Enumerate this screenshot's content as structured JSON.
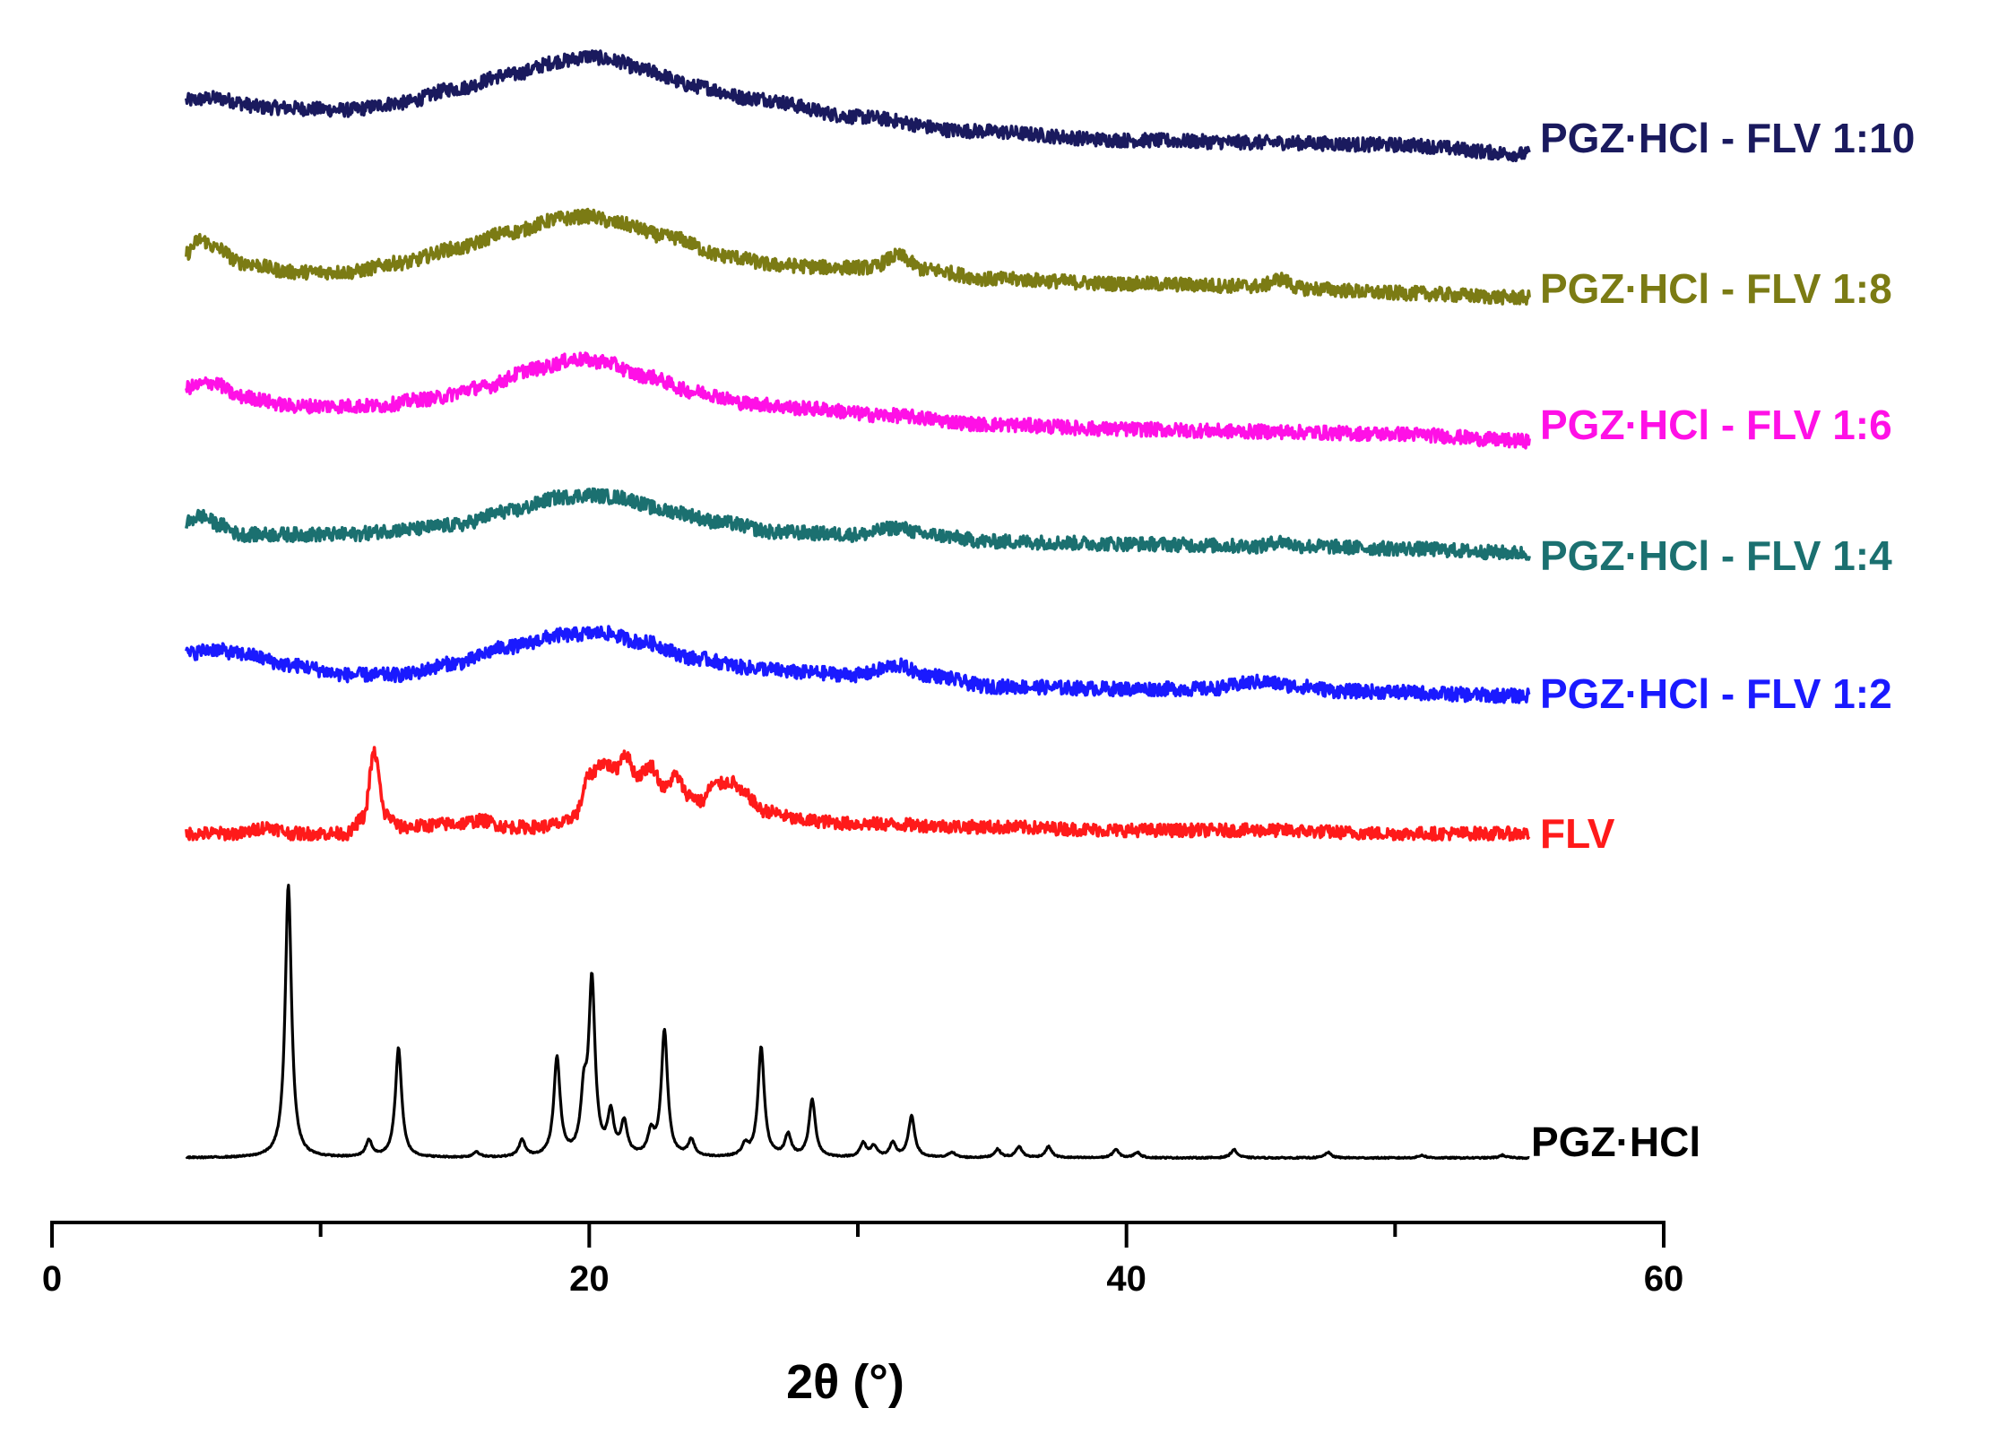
{
  "chart_data": {
    "type": "line",
    "title": "",
    "xlabel": "2θ (°)",
    "ylabel": "",
    "xlim": [
      0,
      60
    ],
    "x_ticks": [
      0,
      20,
      40,
      60
    ],
    "x_minor_ticks": [
      10,
      30,
      50
    ],
    "x_range": [
      5,
      55
    ],
    "grid": false,
    "legend": "inline labels at right end of each trace",
    "series": [
      {
        "name": "PGZ·HCl - FLV 1:10",
        "color": "#1a1a5e",
        "profile": "amorphous",
        "points": [
          [
            5,
            3
          ],
          [
            6,
            4
          ],
          [
            8,
            0
          ],
          [
            11,
            -1
          ],
          [
            13,
            2
          ],
          [
            15,
            8
          ],
          [
            17,
            14
          ],
          [
            19,
            20
          ],
          [
            20,
            22
          ],
          [
            21,
            20
          ],
          [
            22,
            16
          ],
          [
            24,
            9
          ],
          [
            26,
            4
          ],
          [
            30,
            -4
          ],
          [
            34,
            -10
          ],
          [
            40,
            -14
          ],
          [
            45,
            -15
          ],
          [
            50,
            -16
          ],
          [
            55,
            -20
          ]
        ],
        "noise": 3
      },
      {
        "name": "PGZ·HCl - FLV 1:8",
        "color": "#7b7b14",
        "profile": "amorphous",
        "points": [
          [
            5,
            2
          ],
          [
            5.5,
            8
          ],
          [
            6.2,
            4
          ],
          [
            7,
            -2
          ],
          [
            9,
            -6
          ],
          [
            11,
            -6
          ],
          [
            13,
            -2
          ],
          [
            15,
            4
          ],
          [
            17,
            11
          ],
          [
            19,
            17
          ],
          [
            20,
            18
          ],
          [
            21,
            15
          ],
          [
            23,
            9
          ],
          [
            25,
            1
          ],
          [
            27,
            -3
          ],
          [
            29,
            -4
          ],
          [
            30.5,
            -4
          ],
          [
            31.5,
            1
          ],
          [
            32.5,
            -5
          ],
          [
            35,
            -9
          ],
          [
            40,
            -11
          ],
          [
            45,
            -12
          ],
          [
            45.7,
            -9
          ],
          [
            46.5,
            -13
          ],
          [
            50,
            -15
          ],
          [
            55,
            -17
          ]
        ],
        "noise": 3
      },
      {
        "name": "PGZ·HCl - FLV 1:6",
        "color": "#ff10e6",
        "profile": "amorphous",
        "points": [
          [
            5,
            3
          ],
          [
            6,
            5
          ],
          [
            7,
            -1
          ],
          [
            9,
            -5
          ],
          [
            12,
            -5
          ],
          [
            14,
            -2
          ],
          [
            16,
            3
          ],
          [
            18,
            11
          ],
          [
            19.5,
            15
          ],
          [
            20.5,
            14
          ],
          [
            22,
            8
          ],
          [
            24,
            1
          ],
          [
            26,
            -4
          ],
          [
            28,
            -6
          ],
          [
            31,
            -9
          ],
          [
            35,
            -13
          ],
          [
            40,
            -15
          ],
          [
            45,
            -16
          ],
          [
            50,
            -17
          ],
          [
            55,
            -20
          ]
        ],
        "noise": 3
      },
      {
        "name": "PGZ·HCl - FLV 1:4",
        "color": "#1b7070",
        "profile": "amorphous",
        "points": [
          [
            5,
            1
          ],
          [
            5.5,
            4
          ],
          [
            6.3,
            0
          ],
          [
            7,
            -4
          ],
          [
            9,
            -4
          ],
          [
            11,
            -4
          ],
          [
            13,
            -2
          ],
          [
            15,
            0
          ],
          [
            17,
            6
          ],
          [
            19,
            12
          ],
          [
            20,
            13
          ],
          [
            21,
            12
          ],
          [
            23,
            6
          ],
          [
            25,
            1
          ],
          [
            27,
            -3
          ],
          [
            30,
            -4
          ],
          [
            31.5,
            -1
          ],
          [
            32.5,
            -4
          ],
          [
            35,
            -7
          ],
          [
            40,
            -8
          ],
          [
            45,
            -9
          ],
          [
            45.7,
            -7
          ],
          [
            46.5,
            -9
          ],
          [
            50,
            -10
          ],
          [
            55,
            -12
          ]
        ],
        "noise": 3
      },
      {
        "name": "PGZ·HCl - FLV 1:2",
        "color": "#1a1aff",
        "profile": "amorphous",
        "points": [
          [
            5,
            4
          ],
          [
            6,
            6
          ],
          [
            7,
            4
          ],
          [
            9,
            -1
          ],
          [
            11,
            -5
          ],
          [
            13,
            -5
          ],
          [
            15,
            0
          ],
          [
            17,
            7
          ],
          [
            19,
            12
          ],
          [
            20.5,
            13
          ],
          [
            22,
            9
          ],
          [
            24,
            2
          ],
          [
            26,
            -2
          ],
          [
            28,
            -4
          ],
          [
            30,
            -5
          ],
          [
            31.5,
            -1
          ],
          [
            32.5,
            -5
          ],
          [
            35,
            -10
          ],
          [
            40,
            -11
          ],
          [
            43,
            -11
          ],
          [
            45,
            -8
          ],
          [
            46.5,
            -10
          ],
          [
            48,
            -12
          ],
          [
            55,
            -14
          ]
        ],
        "noise": 3
      },
      {
        "name": "FLV",
        "color": "#ff1a1a",
        "profile": "semi-crystalline",
        "points": [
          [
            5,
            0
          ],
          [
            7,
            0
          ],
          [
            8,
            2
          ],
          [
            9,
            0
          ],
          [
            11,
            0
          ],
          [
            11.6,
            5
          ],
          [
            12,
            25
          ],
          [
            12.4,
            6
          ],
          [
            13,
            2
          ],
          [
            15,
            3
          ],
          [
            16,
            4
          ],
          [
            17,
            2
          ],
          [
            18,
            2
          ],
          [
            19,
            3
          ],
          [
            19.5,
            6
          ],
          [
            20,
            18
          ],
          [
            20.5,
            22
          ],
          [
            21,
            20
          ],
          [
            21.3,
            25
          ],
          [
            21.8,
            18
          ],
          [
            22.3,
            21
          ],
          [
            22.8,
            14
          ],
          [
            23.2,
            18
          ],
          [
            23.7,
            12
          ],
          [
            24.2,
            10
          ],
          [
            24.6,
            15
          ],
          [
            25.3,
            16
          ],
          [
            25.8,
            12
          ],
          [
            26.5,
            7
          ],
          [
            28,
            4
          ],
          [
            30,
            3
          ],
          [
            35,
            2
          ],
          [
            40,
            1
          ],
          [
            45,
            1
          ],
          [
            50,
            0
          ],
          [
            55,
            0
          ]
        ],
        "noise": 2
      },
      {
        "name": "PGZ·HCl",
        "color": "#000000",
        "profile": "crystalline",
        "baseline": 0,
        "peaks": [
          [
            8.8,
            100
          ],
          [
            11.8,
            6
          ],
          [
            12.9,
            40
          ],
          [
            15.8,
            2
          ],
          [
            17.5,
            6
          ],
          [
            18.8,
            36
          ],
          [
            19.8,
            20
          ],
          [
            20.1,
            63
          ],
          [
            20.8,
            15
          ],
          [
            21.3,
            12
          ],
          [
            22.3,
            8
          ],
          [
            22.8,
            46
          ],
          [
            23.8,
            6
          ],
          [
            25.8,
            4
          ],
          [
            26.4,
            40
          ],
          [
            27.4,
            8
          ],
          [
            28.3,
            21
          ],
          [
            30.2,
            5
          ],
          [
            30.6,
            4
          ],
          [
            31.3,
            5
          ],
          [
            32.0,
            15
          ],
          [
            33.5,
            2
          ],
          [
            35.2,
            3
          ],
          [
            36.0,
            4
          ],
          [
            37.1,
            4
          ],
          [
            39.6,
            3
          ],
          [
            40.4,
            2
          ],
          [
            44.0,
            3
          ],
          [
            47.5,
            2
          ],
          [
            51,
            1
          ],
          [
            54,
            1
          ]
        ],
        "noise": 0.5
      }
    ]
  }
}
